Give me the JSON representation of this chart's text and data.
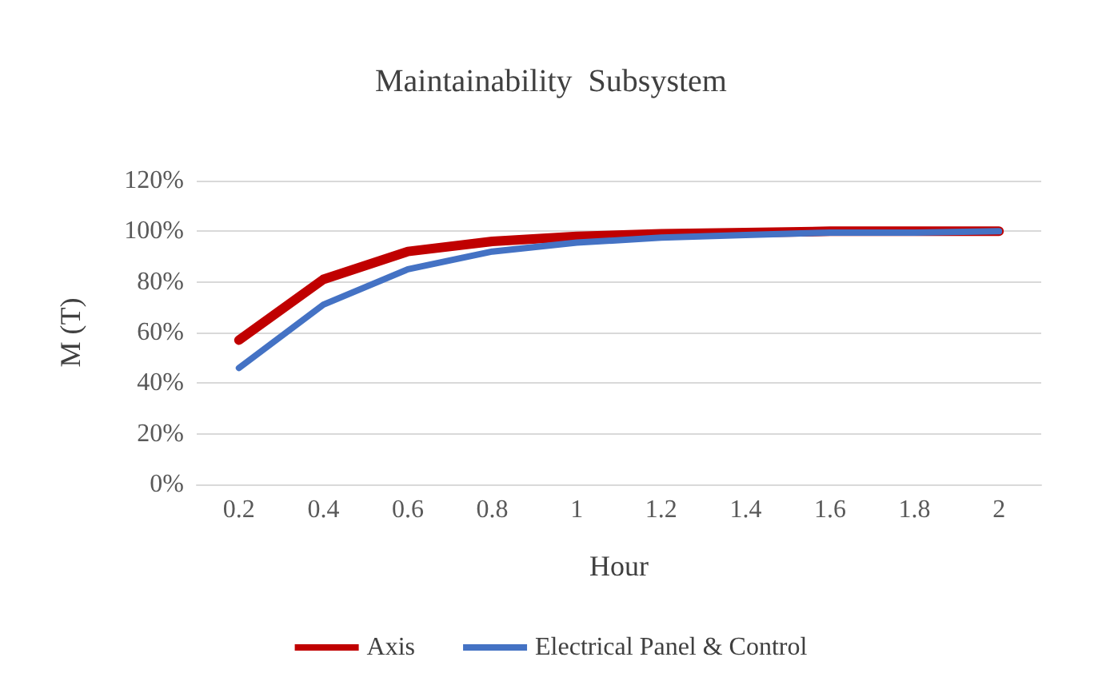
{
  "chart_data": {
    "type": "line",
    "title": "Maintainability  Subsystem",
    "xlabel": "Hour",
    "ylabel": "M (T)",
    "categories": [
      "0.2",
      "0.4",
      "0.6",
      "0.8",
      "1",
      "1.2",
      "1.4",
      "1.6",
      "1.8",
      "2"
    ],
    "series": [
      {
        "name": "Axis",
        "color": "#c00000",
        "values": [
          57,
          81,
          92,
          96,
          98,
          99,
          99.5,
          100,
          100,
          100
        ]
      },
      {
        "name": "Electrical Panel & Control",
        "color": "#4472c4",
        "values": [
          46,
          71,
          85,
          92,
          95.5,
          97.5,
          98.5,
          99.5,
          99.5,
          100
        ]
      }
    ],
    "ylim": [
      0,
      120
    ],
    "yticks": [
      {
        "value": 0,
        "label": "0%"
      },
      {
        "value": 20,
        "label": "20%"
      },
      {
        "value": 40,
        "label": "40%"
      },
      {
        "value": 60,
        "label": "60%"
      },
      {
        "value": 80,
        "label": "80%"
      },
      {
        "value": 100,
        "label": "100%"
      },
      {
        "value": 120,
        "label": "120%"
      }
    ],
    "grid": "y",
    "legend": "bottom",
    "marker": "none",
    "line_style": "solid"
  }
}
